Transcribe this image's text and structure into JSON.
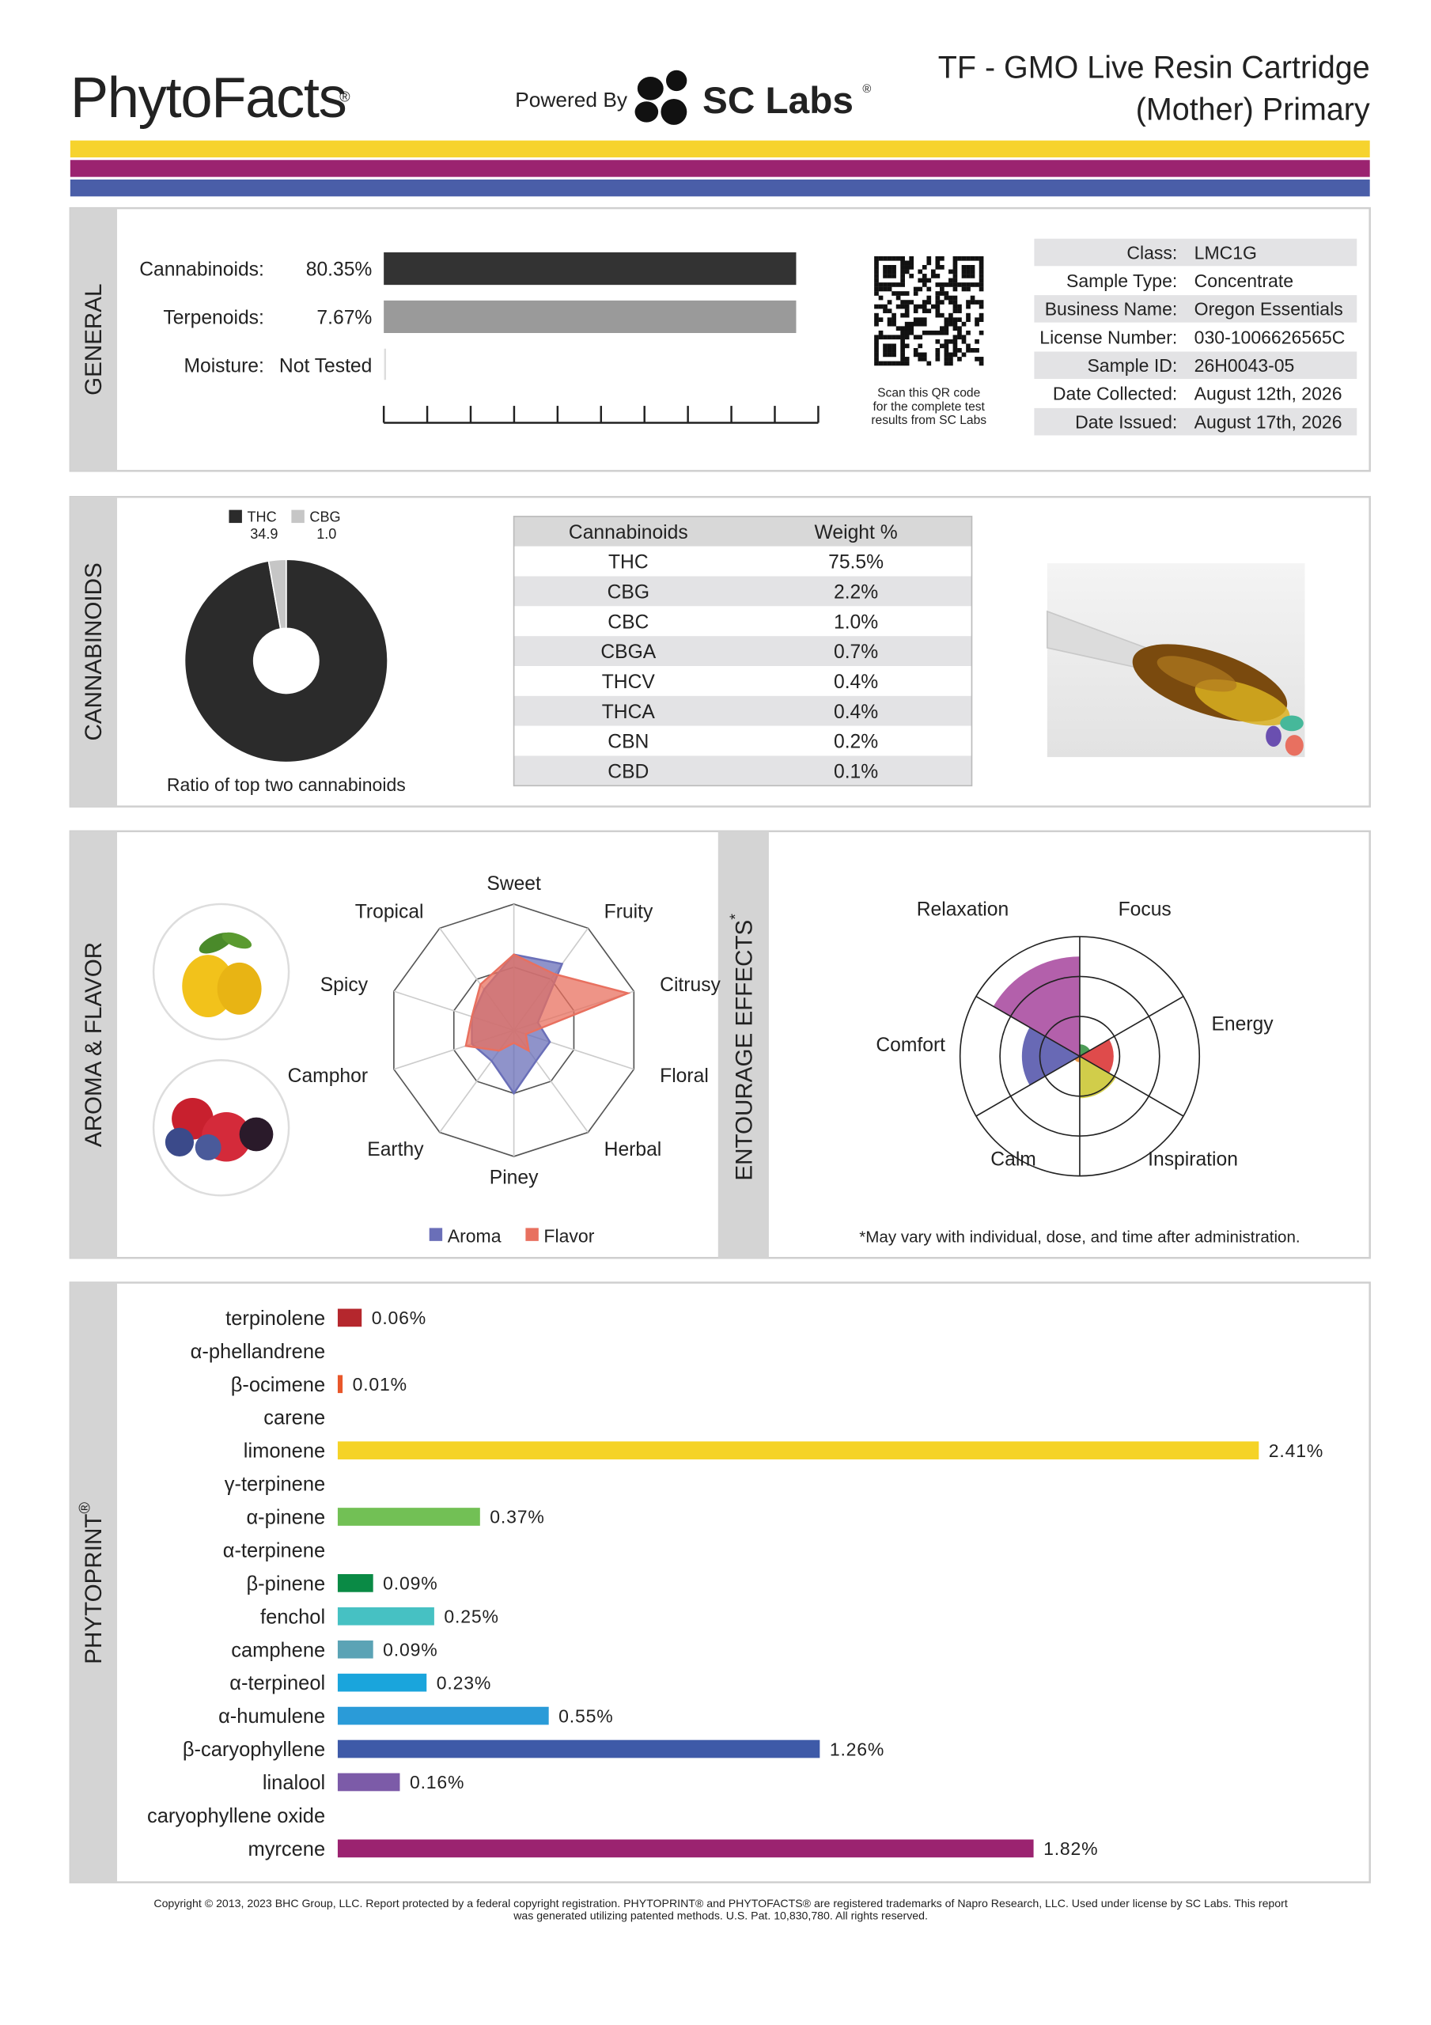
{
  "header": {
    "brand": "PhytoFacts",
    "brand_mark": "®",
    "powered_by": "Powered By",
    "lab": "SC Labs",
    "lab_mark": "®",
    "title_lines": [
      "TF - GMO Live Resin Cartridge",
      "(Mother) Primary"
    ]
  },
  "general": {
    "section": "GENERAL",
    "potency": [
      {
        "label": "Cannabinoids:",
        "value": "80.35%"
      },
      {
        "label": "Terpenoids:",
        "value": "7.67%"
      },
      {
        "label": "Moisture:",
        "value": "Not Tested"
      }
    ],
    "qr_caption": [
      "Scan this QR code",
      "for the complete test",
      "results from SC Labs"
    ],
    "info": [
      {
        "label": "Class:",
        "value": "LMC1G"
      },
      {
        "label": "Sample Type:",
        "value": "Concentrate"
      },
      {
        "label": "Business Name:",
        "value": "Oregon Essentials"
      },
      {
        "label": "License Number:",
        "value": "030-1006626565C"
      },
      {
        "label": "Sample ID:",
        "value": "26H0043-05"
      },
      {
        "label": "Date Collected:",
        "value": "August 12th, 2026"
      },
      {
        "label": "Date Issued:",
        "value": "August 17th, 2026"
      }
    ]
  },
  "cannabinoids": {
    "section": "CANNABINOIDS",
    "table": {
      "columns": [
        "Cannabinoids",
        "Weight %"
      ],
      "rows": [
        [
          "THC",
          "75.5%"
        ],
        [
          "CBG",
          "2.2%"
        ],
        [
          "CBC",
          "1.0%"
        ],
        [
          "CBGA",
          "0.7%"
        ],
        [
          "THCV",
          "0.4%"
        ],
        [
          "THCA",
          "0.4%"
        ],
        [
          "CBN",
          "0.2%"
        ],
        [
          "CBD",
          "0.1%"
        ]
      ]
    }
  },
  "aroma": {
    "section": "AROMA & FLAVOR"
  },
  "chart_data": [
    {
      "type": "pie",
      "categories": [
        "THC",
        "CBG"
      ],
      "values": [
        34.9,
        1.0
      ],
      "value_labels": [
        "34.9",
        "1.0"
      ],
      "colors": [
        "#2b2b2b",
        "#c6c6c6"
      ],
      "caption": "Ratio of top two cannabinoids"
    },
    {
      "type": "radar",
      "categories": [
        "Sweet",
        "Fruity",
        "Citrusy",
        "Floral",
        "Herbal",
        "Piney",
        "Earthy",
        "Camphor",
        "Spicy",
        "Tropical"
      ],
      "rlim": [
        0,
        1
      ],
      "rticks": [
        0.5,
        1
      ],
      "series": [
        {
          "name": "Aroma",
          "color": "#6a6fb8",
          "values": [
            0.6,
            0.65,
            0.2,
            0.3,
            0.3,
            0.5,
            0.3,
            0.35,
            0.35,
            0.4
          ]
        },
        {
          "name": "Flavor",
          "color": "#e8705f",
          "values": [
            0.6,
            0.55,
            0.95,
            0.1,
            0.2,
            0.1,
            0.2,
            0.4,
            0.35,
            0.45
          ]
        }
      ]
    },
    {
      "type": "polar-area",
      "title": "ENTOURAGE EFFECTS",
      "title_mark": "*",
      "categories": [
        "Relaxation",
        "Focus",
        "Energy",
        "Inspiration",
        "Calm",
        "Comfort"
      ],
      "values": [
        2.5,
        0.3,
        0.85,
        1.05,
        0.15,
        1.45
      ],
      "colors": [
        "#a6449c",
        "#2e8b3a",
        "#d92b2b",
        "#c9c42a",
        "#e8862a",
        "#4d4fa8"
      ],
      "rlim": [
        0,
        3
      ],
      "rticks": [
        1,
        2,
        3
      ],
      "note": "*May vary with individual, dose, and time after administration."
    },
    {
      "type": "bar",
      "orientation": "horizontal",
      "title": "PHYTOPRINT",
      "title_mark": "®",
      "xlim": [
        0,
        2.6
      ],
      "categories": [
        "terpinolene",
        "α-phellandrene",
        "β-ocimene",
        "carene",
        "limonene",
        "γ-terpinene",
        "α-pinene",
        "α-terpinene",
        "β-pinene",
        "fenchol",
        "camphene",
        "α-terpineol",
        "α-humulene",
        "β-caryophyllene",
        "linalool",
        "caryophyllene oxide",
        "myrcene"
      ],
      "values": [
        0.06,
        0,
        0.01,
        0,
        2.41,
        0,
        0.37,
        0,
        0.09,
        0.25,
        0.09,
        0.23,
        0.55,
        1.26,
        0.16,
        0,
        1.82
      ],
      "value_labels": [
        "0.06%",
        null,
        "0.01%",
        null,
        "2.41%",
        null,
        "0.37%",
        null,
        "0.09%",
        "0.25%",
        "0.09%",
        "0.23%",
        "0.55%",
        "1.26%",
        "0.16%",
        null,
        "1.82%"
      ],
      "colors": [
        "#b5272d",
        "#d9402b",
        "#e8572a",
        "#e07a2a",
        "#f5d327",
        "#c7d23a",
        "#72c055",
        "#35a84a",
        "#0a8a45",
        "#46c1c3",
        "#5ba3b5",
        "#1aa5dc",
        "#2a9bd8",
        "#3e5aa8",
        "#7c5ba8",
        "#5a1e4a",
        "#9b2370"
      ],
      "label_colors": [
        "#a81e24",
        "#c8322a",
        "#d84a25",
        "#c8641e",
        "#a88a10",
        "#8a9a1e",
        "#3f9a2e",
        "#268a3c",
        "#0b7a3c",
        "#1f8f96",
        "#2a7a94",
        "#1486b8",
        "#1f7fb8",
        "#34509a",
        "#5e4a96",
        "#4a1838",
        "#8a1f62"
      ]
    }
  ],
  "footer": {
    "lines": [
      "Copyright © 2013, 2023 BHC Group, LLC. Report protected by a federal copyright registration. PHYTOPRINT® and PHYTOFACTS® are registered trademarks of Napro Research, LLC. Used under license by SC Labs. This report",
      "was generated utilizing patented methods. U.S. Pat. 10,830,780. All rights reserved."
    ]
  }
}
